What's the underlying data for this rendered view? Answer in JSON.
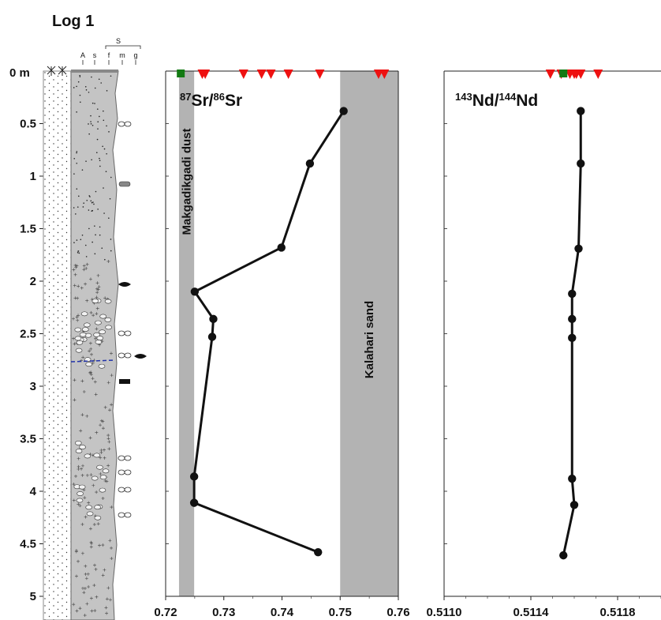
{
  "figure": {
    "title": "Log 1",
    "depth_axis": {
      "unit_label": "0 m",
      "ticks": [
        "0.5",
        "1",
        "1.5",
        "2",
        "2.5",
        "3",
        "3.5",
        "4",
        "4.5",
        "5"
      ]
    },
    "log_header": {
      "group_label": "S",
      "columns": [
        "A",
        "s",
        "f",
        "m",
        "g"
      ]
    }
  },
  "chart_data": [
    {
      "type": "line",
      "panel": "sr",
      "title_main": "Sr/",
      "title_sup1": "87",
      "title_sup2": "86",
      "title_tail": "Sr",
      "xlim": [
        0.72,
        0.76
      ],
      "ylim": [
        0,
        5
      ],
      "grid": false,
      "xticks": [
        "0.72",
        "0.73",
        "0.74",
        "0.75",
        "0.76"
      ],
      "bands": [
        {
          "label": "Makgadikgadi dust",
          "x0": 0.7223,
          "x1": 0.7249,
          "color": "#b3b3b3"
        },
        {
          "label": "Kalahari sand",
          "x0": 0.75,
          "x1": 0.76,
          "color": "#b3b3b3"
        }
      ],
      "markers": {
        "green_squares": [
          0.7226
        ],
        "red_triangles": [
          0.7263,
          0.7268,
          0.7334,
          0.7365,
          0.7381,
          0.7411,
          0.7465,
          0.7566,
          0.7576
        ]
      },
      "series": [
        {
          "points": [
            {
              "x": 0.7506,
              "y": 0.38
            },
            {
              "x": 0.7448,
              "y": 0.88
            },
            {
              "x": 0.7399,
              "y": 1.68
            },
            {
              "x": 0.725,
              "y": 2.1
            },
            {
              "x": 0.7282,
              "y": 2.36
            },
            {
              "x": 0.728,
              "y": 2.53
            },
            {
              "x": 0.7249,
              "y": 3.86
            },
            {
              "x": 0.7249,
              "y": 4.11
            },
            {
              "x": 0.7462,
              "y": 4.58
            }
          ]
        }
      ]
    },
    {
      "type": "line",
      "panel": "nd",
      "title_main": "Nd/",
      "title_sup1": "143",
      "title_sup2": "144",
      "title_tail": "Nd",
      "xlim": [
        0.511,
        0.512
      ],
      "ylim": [
        0,
        5
      ],
      "grid": false,
      "xticks": [
        "0.5110",
        "0.5114",
        "0.5118"
      ],
      "xtick_values": [
        0.511,
        0.5114,
        0.5118
      ],
      "markers": {
        "green_squares": [
          0.51155
        ],
        "red_triangles": [
          0.51149,
          0.51154,
          0.51158,
          0.5116,
          0.51161,
          0.51163,
          0.51171
        ]
      },
      "series": [
        {
          "points": [
            {
              "x": 0.51163,
              "y": 0.38
            },
            {
              "x": 0.51163,
              "y": 0.88
            },
            {
              "x": 0.51162,
              "y": 1.69
            },
            {
              "x": 0.51159,
              "y": 2.12
            },
            {
              "x": 0.51159,
              "y": 2.36
            },
            {
              "x": 0.51159,
              "y": 2.54
            },
            {
              "x": 0.51159,
              "y": 3.88
            },
            {
              "x": 0.5116,
              "y": 4.13
            },
            {
              "x": 0.51155,
              "y": 4.61
            }
          ]
        }
      ]
    }
  ]
}
